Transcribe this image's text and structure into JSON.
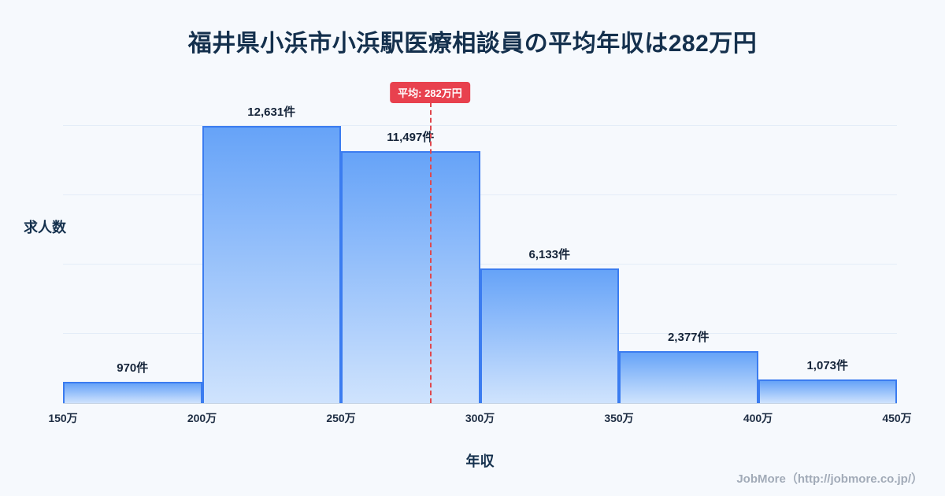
{
  "title": "福井県小浜市小浜駅医療相談員の平均年収は282万円",
  "chart_data": {
    "type": "bar",
    "title": "福井県小浜市小浜駅医療相談員の平均年収は282万円",
    "categories": [
      "150万-200万",
      "200万-250万",
      "250万-300万",
      "300万-350万",
      "350万-400万",
      "400万-450万"
    ],
    "values": [
      970,
      12631,
      11497,
      6133,
      2377,
      1073
    ],
    "value_labels": [
      "970件",
      "12,631件",
      "11,497件",
      "6,133件",
      "2,377件",
      "1,073件"
    ],
    "x_ticks": [
      "150万",
      "200万",
      "250万",
      "300万",
      "350万",
      "400万",
      "450万"
    ],
    "x_range": [
      150,
      450
    ],
    "xlabel": "年収",
    "ylabel": "求人数",
    "grid": "horizontal",
    "average": {
      "value": 282,
      "label": "平均: 282万円"
    },
    "colors": {
      "bar_top": "#66a3f8",
      "bar_bottom": "#cfe3fd",
      "bar_border": "#3b7cf0",
      "average_line": "#e0484e",
      "badge_bg": "#e8414e",
      "title_text": "#14304d"
    }
  },
  "footer": {
    "credit": "JobMore（http://jobmore.co.jp/）"
  }
}
